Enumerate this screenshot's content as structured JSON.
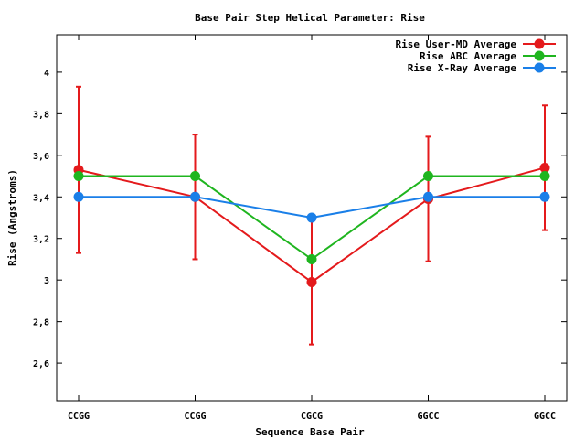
{
  "chart_data": {
    "type": "line",
    "title": "Base Pair Step Helical Parameter: Rise",
    "xlabel": "Sequence Base Pair",
    "ylabel": "Rise (Angstroms)",
    "categories": [
      "CCGG",
      "CCGG",
      "CGCG",
      "GGCC",
      "GGCC"
    ],
    "ylim": [
      2.42,
      4.18
    ],
    "yticks": [
      2.6,
      2.8,
      3,
      3.2,
      3.4,
      3.6,
      3.8,
      4
    ],
    "ytick_labels": [
      "2,6",
      "2,8",
      "3",
      "3,2",
      "3,4",
      "3,6",
      "3,8",
      "4"
    ],
    "grid": false,
    "legend_position": "top-right",
    "series": [
      {
        "name": "Rise User-MD Average",
        "color": "#e41a1c",
        "values": [
          3.53,
          3.4,
          2.99,
          3.39,
          3.54
        ],
        "error_low": [
          3.13,
          3.1,
          2.69,
          3.09,
          3.24
        ],
        "error_high": [
          3.93,
          3.7,
          3.29,
          3.69,
          3.84
        ]
      },
      {
        "name": "Rise ABC Average",
        "color": "#1fb51f",
        "values": [
          3.5,
          3.5,
          3.1,
          3.5,
          3.5
        ]
      },
      {
        "name": "Rise X-Ray Average",
        "color": "#1a7fe8",
        "values": [
          3.4,
          3.4,
          3.3,
          3.4,
          3.4
        ]
      }
    ]
  }
}
